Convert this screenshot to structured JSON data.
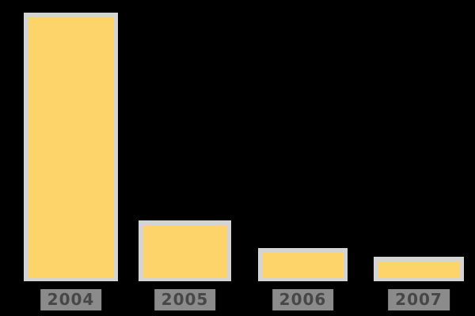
{
  "chart_data": {
    "type": "bar",
    "title": "",
    "xlabel": "",
    "ylabel": "",
    "categories": [
      "2004",
      "2005",
      "2006",
      "2007"
    ],
    "values": [
      100,
      20.3,
      9.7,
      6.4
    ],
    "ylim": [
      0,
      105
    ],
    "grid": false,
    "legend": "none",
    "axes_visible": false,
    "bar_color": "#FCD46A",
    "bar_frame_color": "#D4D4D4",
    "label_chip_color": "#8B8B8B",
    "label_text_color": "#474747",
    "background_color": "#000000"
  }
}
